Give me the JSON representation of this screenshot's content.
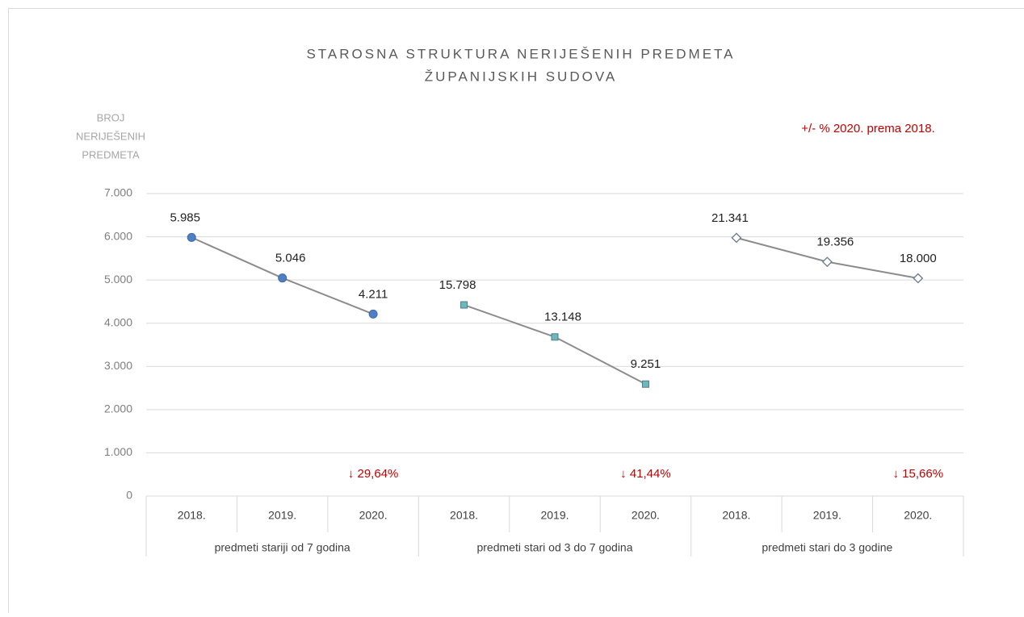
{
  "chart_data": {
    "type": "line",
    "title": [
      "STAROSNA STRUKTURA NERIJEŠENIH PREDMETA",
      "ŽUPANIJSKIH SUDOVA"
    ],
    "ylabel": [
      "BROJ",
      "NERIJEŠENIH",
      "PREDMETA"
    ],
    "note": "+/- % 2020. prema 2018.",
    "ylim": [
      0,
      7000
    ],
    "yticks": [
      0,
      {
        "value": 1000,
        "label": "1.000"
      },
      {
        "value": 2000,
        "label": "2.000"
      },
      {
        "value": 3000,
        "label": "3.000"
      },
      {
        "value": 4000,
        "label": "4.000"
      },
      {
        "value": 5000,
        "label": "5.000"
      },
      {
        "value": 6000,
        "label": "6.000"
      },
      {
        "value": 7000,
        "label": "7.000"
      }
    ],
    "y2lim": [
      0,
      25000
    ],
    "grid": true,
    "groups": [
      {
        "label": "predmeti stariji od 7 godina",
        "categories": [
          "2018.",
          "2019.",
          "2020."
        ],
        "values": [
          5985,
          5046,
          4211
        ],
        "value_labels": [
          "5.985",
          "5.046",
          "4.211"
        ],
        "change_label": "↓ 29,64%",
        "marker": "circle",
        "color": "#4f7fc4"
      },
      {
        "label": "predmeti stari od 3 do 7 godina",
        "categories": [
          "2018.",
          "2019.",
          "2020."
        ],
        "values": [
          15798,
          13148,
          9251
        ],
        "value_labels": [
          "15.798",
          "13.148",
          "9.251"
        ],
        "change_label": "↓ 41,44%",
        "marker": "square",
        "color": "#6fb7bf",
        "axis": "y2"
      },
      {
        "label": "predmeti stari do 3 godine",
        "categories": [
          "2018.",
          "2019.",
          "2020."
        ],
        "values": [
          21341,
          19356,
          18000
        ],
        "value_labels": [
          "21.341",
          "19.356",
          "18.000"
        ],
        "change_label": "↓ 15,66%",
        "marker": "diamond",
        "color": "#ffffff",
        "axis": "y2"
      }
    ]
  }
}
